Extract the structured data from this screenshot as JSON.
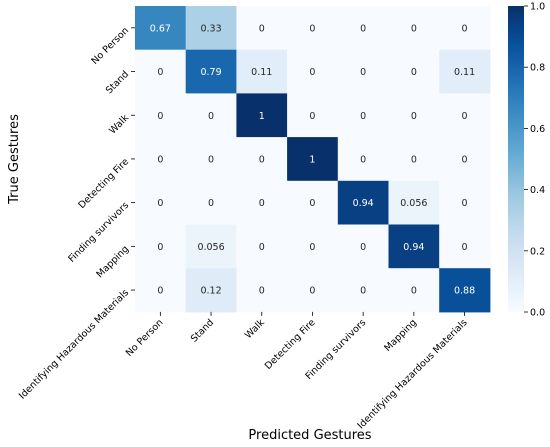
{
  "chart_data": {
    "type": "heatmap",
    "xlabel": "Predicted Gestures",
    "ylabel": "True Gestures",
    "x_categories": [
      "No Person",
      "Stand",
      "Walk",
      "Detecting Fire",
      "Finding survivors",
      "Mapping",
      "Identifying Hazardous Materials"
    ],
    "y_categories": [
      "No Person",
      "Stand",
      "Walk",
      "Detecting Fire",
      "Finding survivors",
      "Mapping",
      "Identifying Hazardous Materials"
    ],
    "values": [
      [
        0.67,
        0.33,
        0,
        0,
        0,
        0,
        0
      ],
      [
        0,
        0.79,
        0.11,
        0,
        0,
        0,
        0.11
      ],
      [
        0,
        0,
        1,
        0,
        0,
        0,
        0
      ],
      [
        0,
        0,
        0,
        1,
        0,
        0,
        0
      ],
      [
        0,
        0,
        0,
        0,
        0.94,
        0.056,
        0
      ],
      [
        0,
        0.056,
        0,
        0,
        0,
        0.94,
        0
      ],
      [
        0,
        0.12,
        0,
        0,
        0,
        0,
        0.88
      ]
    ],
    "cell_labels": [
      [
        "0.67",
        "0.33",
        "0",
        "0",
        "0",
        "0",
        "0"
      ],
      [
        "0",
        "0.79",
        "0.11",
        "0",
        "0",
        "0",
        "0.11"
      ],
      [
        "0",
        "0",
        "1",
        "0",
        "0",
        "0",
        "0"
      ],
      [
        "0",
        "0",
        "0",
        "1",
        "0",
        "0",
        "0"
      ],
      [
        "0",
        "0",
        "0",
        "0",
        "0.94",
        "0.056",
        "0"
      ],
      [
        "0",
        "0.056",
        "0",
        "0",
        "0",
        "0.94",
        "0"
      ],
      [
        "0",
        "0.12",
        "0",
        "0",
        "0",
        "0",
        "0.88"
      ]
    ],
    "colorscale": "Blues",
    "color_range": [
      0,
      1
    ],
    "colorbar_ticks": [
      "0.0",
      "0.2",
      "0.4",
      "0.6",
      "0.8",
      "1.0"
    ]
  }
}
